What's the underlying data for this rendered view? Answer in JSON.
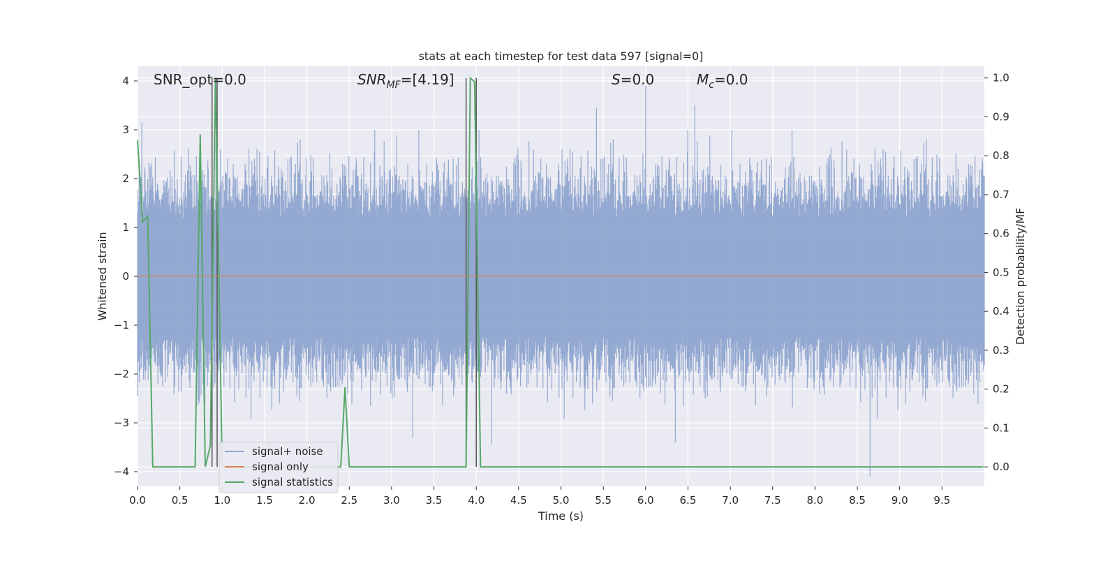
{
  "chart_data": {
    "type": "line",
    "title": "stats at each timestep for test data 597 [signal=0]",
    "xlabel": "Time (s)",
    "ylabel_left": "Whitened strain",
    "ylabel_right": "Detection probability/MF",
    "xlim": [
      0,
      10
    ],
    "ylim_left": [
      -4.3,
      4.3
    ],
    "ylim_right": [
      -0.05,
      1.03
    ],
    "x_ticks": [
      "0.0",
      "0.5",
      "1.0",
      "1.5",
      "2.0",
      "2.5",
      "3.0",
      "3.5",
      "4.0",
      "4.5",
      "5.0",
      "5.5",
      "6.0",
      "6.5",
      "7.0",
      "7.5",
      "8.0",
      "8.5",
      "9.0",
      "9.5"
    ],
    "y_left_ticks": [
      "4",
      "3",
      "2",
      "1",
      "0",
      "−1",
      "−2",
      "−3",
      "−4"
    ],
    "y_right_ticks": [
      "1.0",
      "0.9",
      "0.8",
      "0.7",
      "0.6",
      "0.5",
      "0.4",
      "0.3",
      "0.2",
      "0.1",
      "0.0"
    ],
    "grid": true,
    "annotations": {
      "snr_opt": "SNR_opt=0.0",
      "snr_mf_base": "SNR",
      "snr_mf_sub": "MF",
      "snr_mf_value": "=[4.19]",
      "s_var": "S",
      "s_value": "=0.0",
      "mc_var": "M",
      "mc_sub": "c",
      "mc_value": "=0.0"
    },
    "legend": {
      "placement": "lower-left",
      "entries": [
        "signal+ noise",
        "signal only",
        "signal statistics"
      ]
    },
    "colors": {
      "noise": "#8fa5cf",
      "signal_only": "#dd8452",
      "statistics": "#55a868",
      "markers": "#555555",
      "background": "#eaeaf2",
      "grid": "#ffffff"
    },
    "series": [
      {
        "name": "signal+ noise",
        "axis": "left",
        "description_of_extent": "noise band",
        "envelope_samples": 2000,
        "notable_peaks": [
          {
            "x": 0.05,
            "y": 3.15
          },
          {
            "x": 5.42,
            "y": 3.45
          },
          {
            "x": 6.0,
            "y": 3.9
          },
          {
            "x": 6.58,
            "y": 3.5
          },
          {
            "x": 3.25,
            "y": -3.3
          },
          {
            "x": 4.18,
            "y": -3.45
          },
          {
            "x": 6.35,
            "y": -3.4
          },
          {
            "x": 8.65,
            "y": -4.1
          }
        ]
      },
      {
        "name": "signal only",
        "axis": "left",
        "x": [
          0,
          10
        ],
        "y": [
          0,
          0
        ]
      },
      {
        "name": "signal statistics",
        "axis": "right",
        "x": [
          0.0,
          0.06,
          0.12,
          0.18,
          0.68,
          0.74,
          0.8,
          0.86,
          0.92,
          1.0,
          2.4,
          2.45,
          2.5,
          3.88,
          3.93,
          3.98,
          4.05,
          9.99
        ],
        "y": [
          0.84,
          0.63,
          0.645,
          0.0,
          0.0,
          0.855,
          0.0,
          0.055,
          1.0,
          0.0,
          0.0,
          0.205,
          0.0,
          0.0,
          1.0,
          0.99,
          0.0,
          0.0
        ]
      }
    ],
    "vertical_markers_x": [
      0.88,
      0.94,
      3.88,
      4.0
    ]
  }
}
